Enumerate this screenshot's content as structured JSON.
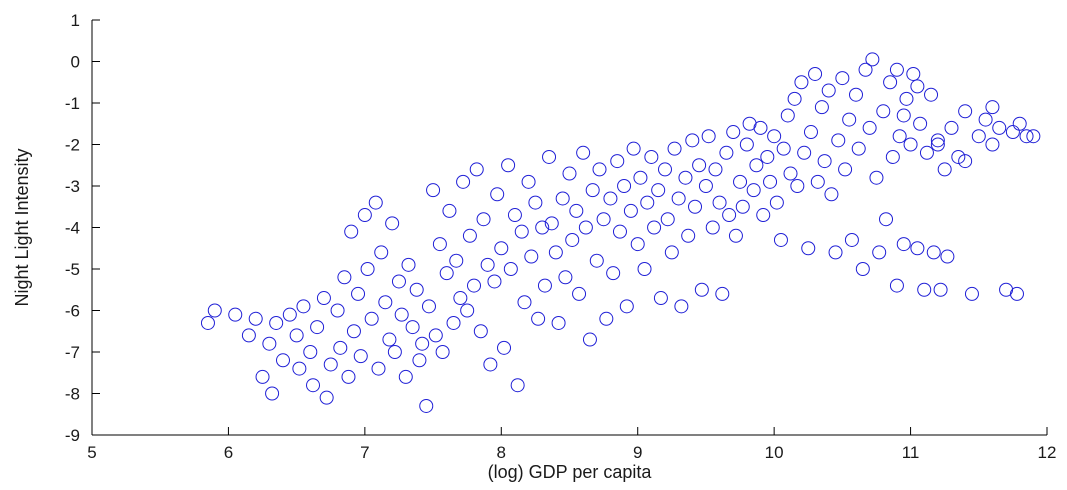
{
  "chart_data": {
    "type": "scatter",
    "title": "",
    "xlabel": "(log) GDP per capita",
    "ylabel": "Night Light Intensity",
    "xlim": [
      5,
      12
    ],
    "ylim": [
      -9,
      1
    ],
    "xticks": [
      5,
      6,
      7,
      8,
      9,
      10,
      11,
      12
    ],
    "yticks": [
      -9,
      -8,
      -7,
      -6,
      -5,
      -4,
      -3,
      -2,
      -1,
      0,
      1
    ],
    "marker": "open-circle",
    "color": "#1f1fd6",
    "grid": false,
    "legend": "none",
    "points": [
      [
        5.85,
        -6.3
      ],
      [
        5.9,
        -6.0
      ],
      [
        6.05,
        -6.1
      ],
      [
        6.15,
        -6.6
      ],
      [
        6.2,
        -6.2
      ],
      [
        6.25,
        -7.6
      ],
      [
        6.3,
        -6.8
      ],
      [
        6.32,
        -8.0
      ],
      [
        6.35,
        -6.3
      ],
      [
        6.4,
        -7.2
      ],
      [
        6.45,
        -6.1
      ],
      [
        6.5,
        -6.6
      ],
      [
        6.52,
        -7.4
      ],
      [
        6.55,
        -5.9
      ],
      [
        6.6,
        -7.0
      ],
      [
        6.62,
        -7.8
      ],
      [
        6.65,
        -6.4
      ],
      [
        6.7,
        -5.7
      ],
      [
        6.72,
        -8.1
      ],
      [
        6.75,
        -7.3
      ],
      [
        6.8,
        -6.0
      ],
      [
        6.82,
        -6.9
      ],
      [
        6.85,
        -5.2
      ],
      [
        6.88,
        -7.6
      ],
      [
        6.9,
        -4.1
      ],
      [
        6.92,
        -6.5
      ],
      [
        6.95,
        -5.6
      ],
      [
        6.97,
        -7.1
      ],
      [
        7.0,
        -3.7
      ],
      [
        7.02,
        -5.0
      ],
      [
        7.05,
        -6.2
      ],
      [
        7.08,
        -3.4
      ],
      [
        7.1,
        -7.4
      ],
      [
        7.12,
        -4.6
      ],
      [
        7.15,
        -5.8
      ],
      [
        7.18,
        -6.7
      ],
      [
        7.2,
        -3.9
      ],
      [
        7.22,
        -7.0
      ],
      [
        7.25,
        -5.3
      ],
      [
        7.27,
        -6.1
      ],
      [
        7.3,
        -7.6
      ],
      [
        7.32,
        -4.9
      ],
      [
        7.35,
        -6.4
      ],
      [
        7.38,
        -5.5
      ],
      [
        7.4,
        -7.2
      ],
      [
        7.42,
        -6.8
      ],
      [
        7.45,
        -8.3
      ],
      [
        7.47,
        -5.9
      ],
      [
        7.5,
        -3.1
      ],
      [
        7.52,
        -6.6
      ],
      [
        7.55,
        -4.4
      ],
      [
        7.57,
        -7.0
      ],
      [
        7.6,
        -5.1
      ],
      [
        7.62,
        -3.6
      ],
      [
        7.65,
        -6.3
      ],
      [
        7.67,
        -4.8
      ],
      [
        7.7,
        -5.7
      ],
      [
        7.72,
        -2.9
      ],
      [
        7.75,
        -6.0
      ],
      [
        7.77,
        -4.2
      ],
      [
        7.8,
        -5.4
      ],
      [
        7.82,
        -2.6
      ],
      [
        7.85,
        -6.5
      ],
      [
        7.87,
        -3.8
      ],
      [
        7.9,
        -4.9
      ],
      [
        7.92,
        -7.3
      ],
      [
        7.95,
        -5.3
      ],
      [
        7.97,
        -3.2
      ],
      [
        8.0,
        -4.5
      ],
      [
        8.02,
        -6.9
      ],
      [
        8.05,
        -2.5
      ],
      [
        8.07,
        -5.0
      ],
      [
        8.1,
        -3.7
      ],
      [
        8.12,
        -7.8
      ],
      [
        8.15,
        -4.1
      ],
      [
        8.17,
        -5.8
      ],
      [
        8.2,
        -2.9
      ],
      [
        8.22,
        -4.7
      ],
      [
        8.25,
        -3.4
      ],
      [
        8.27,
        -6.2
      ],
      [
        8.3,
        -4.0
      ],
      [
        8.32,
        -5.4
      ],
      [
        8.35,
        -2.3
      ],
      [
        8.37,
        -3.9
      ],
      [
        8.4,
        -4.6
      ],
      [
        8.42,
        -6.3
      ],
      [
        8.45,
        -3.3
      ],
      [
        8.47,
        -5.2
      ],
      [
        8.5,
        -2.7
      ],
      [
        8.52,
        -4.3
      ],
      [
        8.55,
        -3.6
      ],
      [
        8.57,
        -5.6
      ],
      [
        8.6,
        -2.2
      ],
      [
        8.62,
        -4.0
      ],
      [
        8.65,
        -6.7
      ],
      [
        8.67,
        -3.1
      ],
      [
        8.7,
        -4.8
      ],
      [
        8.72,
        -2.6
      ],
      [
        8.75,
        -3.8
      ],
      [
        8.77,
        -6.2
      ],
      [
        8.8,
        -3.3
      ],
      [
        8.82,
        -5.1
      ],
      [
        8.85,
        -2.4
      ],
      [
        8.87,
        -4.1
      ],
      [
        8.9,
        -3.0
      ],
      [
        8.92,
        -5.9
      ],
      [
        8.95,
        -3.6
      ],
      [
        8.97,
        -2.1
      ],
      [
        9.0,
        -4.4
      ],
      [
        9.02,
        -2.8
      ],
      [
        9.05,
        -5.0
      ],
      [
        9.07,
        -3.4
      ],
      [
        9.1,
        -2.3
      ],
      [
        9.12,
        -4.0
      ],
      [
        9.15,
        -3.1
      ],
      [
        9.17,
        -5.7
      ],
      [
        9.2,
        -2.6
      ],
      [
        9.22,
        -3.8
      ],
      [
        9.25,
        -4.6
      ],
      [
        9.27,
        -2.1
      ],
      [
        9.3,
        -3.3
      ],
      [
        9.32,
        -5.9
      ],
      [
        9.35,
        -2.8
      ],
      [
        9.37,
        -4.2
      ],
      [
        9.4,
        -1.9
      ],
      [
        9.42,
        -3.5
      ],
      [
        9.45,
        -2.5
      ],
      [
        9.47,
        -5.5
      ],
      [
        9.5,
        -3.0
      ],
      [
        9.52,
        -1.8
      ],
      [
        9.55,
        -4.0
      ],
      [
        9.57,
        -2.6
      ],
      [
        9.6,
        -3.4
      ],
      [
        9.62,
        -5.6
      ],
      [
        9.65,
        -2.2
      ],
      [
        9.67,
        -3.7
      ],
      [
        9.7,
        -1.7
      ],
      [
        9.72,
        -4.2
      ],
      [
        9.75,
        -2.9
      ],
      [
        9.77,
        -3.5
      ],
      [
        9.8,
        -2.0
      ],
      [
        9.82,
        -1.5
      ],
      [
        9.85,
        -3.1
      ],
      [
        9.87,
        -2.5
      ],
      [
        9.9,
        -1.6
      ],
      [
        9.92,
        -3.7
      ],
      [
        9.95,
        -2.3
      ],
      [
        9.97,
        -2.9
      ],
      [
        10.0,
        -1.8
      ],
      [
        10.02,
        -3.4
      ],
      [
        10.05,
        -4.3
      ],
      [
        10.07,
        -2.1
      ],
      [
        10.1,
        -1.3
      ],
      [
        10.12,
        -2.7
      ],
      [
        10.15,
        -0.9
      ],
      [
        10.17,
        -3.0
      ],
      [
        10.2,
        -0.5
      ],
      [
        10.22,
        -2.2
      ],
      [
        10.25,
        -4.5
      ],
      [
        10.27,
        -1.7
      ],
      [
        10.3,
        -0.3
      ],
      [
        10.32,
        -2.9
      ],
      [
        10.35,
        -1.1
      ],
      [
        10.37,
        -2.4
      ],
      [
        10.4,
        -0.7
      ],
      [
        10.42,
        -3.2
      ],
      [
        10.45,
        -4.6
      ],
      [
        10.47,
        -1.9
      ],
      [
        10.5,
        -0.4
      ],
      [
        10.52,
        -2.6
      ],
      [
        10.55,
        -1.4
      ],
      [
        10.57,
        -4.3
      ],
      [
        10.6,
        -0.8
      ],
      [
        10.62,
        -2.1
      ],
      [
        10.65,
        -5.0
      ],
      [
        10.67,
        -0.2
      ],
      [
        10.7,
        -1.6
      ],
      [
        10.72,
        0.05
      ],
      [
        10.75,
        -2.8
      ],
      [
        10.77,
        -4.6
      ],
      [
        10.8,
        -1.2
      ],
      [
        10.82,
        -3.8
      ],
      [
        10.85,
        -0.5
      ],
      [
        10.87,
        -2.3
      ],
      [
        10.9,
        -5.4
      ],
      [
        10.92,
        -1.8
      ],
      [
        10.95,
        -4.4
      ],
      [
        10.97,
        -0.9
      ],
      [
        11.0,
        -2.0
      ],
      [
        11.02,
        -0.3
      ],
      [
        11.05,
        -4.5
      ],
      [
        11.07,
        -1.5
      ],
      [
        11.1,
        -5.5
      ],
      [
        11.12,
        -2.2
      ],
      [
        11.15,
        -0.8
      ],
      [
        11.17,
        -4.6
      ],
      [
        11.2,
        -1.9
      ],
      [
        11.22,
        -5.5
      ],
      [
        11.25,
        -2.6
      ],
      [
        11.27,
        -4.7
      ],
      [
        11.3,
        -1.6
      ],
      [
        11.35,
        -2.3
      ],
      [
        11.4,
        -1.2
      ],
      [
        11.45,
        -5.6
      ],
      [
        11.5,
        -1.8
      ],
      [
        11.55,
        -1.4
      ],
      [
        11.6,
        -1.1
      ],
      [
        11.65,
        -1.6
      ],
      [
        11.7,
        -5.5
      ],
      [
        11.75,
        -1.7
      ],
      [
        11.78,
        -5.6
      ],
      [
        11.8,
        -1.5
      ],
      [
        11.85,
        -1.8
      ],
      [
        11.9,
        -1.8
      ],
      [
        11.6,
        -2.0
      ],
      [
        11.4,
        -2.4
      ],
      [
        11.2,
        -2.0
      ],
      [
        10.9,
        -0.2
      ],
      [
        11.05,
        -0.6
      ],
      [
        10.95,
        -1.3
      ]
    ]
  }
}
